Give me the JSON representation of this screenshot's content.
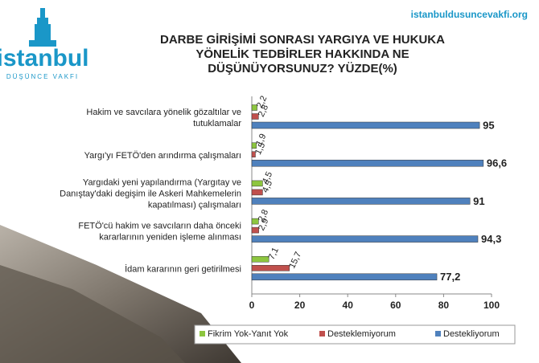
{
  "header": {
    "logo": "istanbul",
    "logo_sub": "DÜŞÜNCE VAKFI",
    "url": "istanbuldusuncevakfi.org"
  },
  "chart_data": {
    "type": "hbar",
    "title": [
      "DARBE GİRİŞİMİ SONRASI  YARGIYA VE HUKUKA",
      "YÖNELİK TEDBİRLER HAKKINDA NE",
      "DÜŞÜNÜYORSUNUZ? YÜZDE(%)"
    ],
    "categories": [
      [
        "Hakim ve savcılara yönelik gözaltılar ve",
        "tutuklamalar"
      ],
      [
        "Yargı'yı  FETÖ'den arındırma çalışmaları"
      ],
      [
        "Yargıdaki yeni yapılandırma (Yargıtay ve",
        "Danıştay'daki degişim ile Askeri Mahkemelerin",
        "kapatılması) çalışmaları"
      ],
      [
        "FETÖ'cü hakim ve savcıların daha önceki",
        "kararlarının yeniden işleme alınması"
      ],
      [
        "İdam kararının geri getirilmesi"
      ]
    ],
    "series": [
      {
        "name": "Fikrim Yok-Yanıt Yok",
        "color": "#8dc63f",
        "values": [
          2.2,
          1.9,
          4.5,
          2.8,
          7.1
        ],
        "value_labels": [
          "2,2",
          "1,9",
          "4,5",
          "2,8",
          "7,1"
        ]
      },
      {
        "name": "Desteklemiyorum",
        "color": "#c0504d",
        "values": [
          2.8,
          1.5,
          4.5,
          2.9,
          15.7
        ],
        "value_labels": [
          "2,8",
          "1,5",
          "4,5",
          "2,9",
          "15,7"
        ]
      },
      {
        "name": "Destekliyorum",
        "color": "#4f81bd",
        "values": [
          95,
          96.6,
          91,
          94.3,
          77.2
        ],
        "value_labels": [
          "95",
          "96,6",
          "91",
          "94,3",
          "77,2"
        ]
      }
    ],
    "xlim": [
      0,
      100
    ],
    "xticks": [
      0,
      20,
      40,
      60,
      80,
      100
    ],
    "grid": false,
    "legend": "bottom"
  }
}
